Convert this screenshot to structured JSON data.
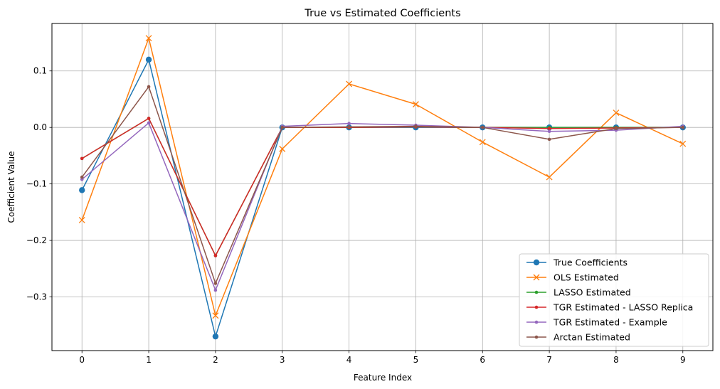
{
  "chart_data": {
    "type": "line",
    "title": "True vs Estimated Coefficients",
    "xlabel": "Feature Index",
    "ylabel": "Coefficient Value",
    "x": [
      0,
      1,
      2,
      3,
      4,
      5,
      6,
      7,
      8,
      9
    ],
    "xlim": [
      -0.45,
      9.45
    ],
    "ylim": [
      -0.395,
      0.184
    ],
    "xticks": [
      "0",
      "1",
      "2",
      "3",
      "4",
      "5",
      "6",
      "7",
      "8",
      "9"
    ],
    "yticks": [
      {
        "value": 0.1,
        "label": "0.1"
      },
      {
        "value": 0.0,
        "label": "0.0"
      },
      {
        "value": -0.1,
        "label": "−0.1"
      },
      {
        "value": -0.2,
        "label": "−0.2"
      },
      {
        "value": -0.3,
        "label": "−0.3"
      }
    ],
    "grid": true,
    "legend_position": "bottom-right",
    "series": [
      {
        "name": "True Coefficients",
        "color": "#1f77b4",
        "marker": "circle-large",
        "values": [
          -0.111,
          0.12,
          -0.37,
          0.0,
          0.0,
          0.0,
          0.0,
          0.0,
          0.0,
          0.0
        ]
      },
      {
        "name": "OLS Estimated",
        "color": "#ff7f0e",
        "marker": "x",
        "values": [
          -0.164,
          0.158,
          -0.333,
          -0.038,
          0.077,
          0.041,
          -0.026,
          -0.088,
          0.026,
          -0.029
        ]
      },
      {
        "name": "LASSO Estimated",
        "color": "#2ca02c",
        "marker": "circle-small",
        "values": [
          -0.055,
          0.016,
          -0.227,
          0.0,
          0.0,
          0.001,
          0.0,
          0.0,
          0.0,
          0.0
        ]
      },
      {
        "name": "TGR Estimated - LASSO Replica",
        "color": "#d62728",
        "marker": "circle-small",
        "values": [
          -0.055,
          0.016,
          -0.227,
          0.0,
          0.0,
          0.001,
          0.0,
          -0.002,
          -0.001,
          0.0
        ]
      },
      {
        "name": "TGR Estimated - Example",
        "color": "#9467bd",
        "marker": "circle-small",
        "values": [
          -0.092,
          0.008,
          -0.288,
          0.002,
          0.007,
          0.004,
          0.0,
          -0.007,
          -0.005,
          0.002
        ]
      },
      {
        "name": "Arctan Estimated",
        "color": "#8c564b",
        "marker": "circle-small",
        "values": [
          -0.088,
          0.072,
          -0.276,
          0.0,
          0.001,
          0.002,
          0.0,
          -0.021,
          -0.002,
          0.0
        ]
      }
    ]
  }
}
